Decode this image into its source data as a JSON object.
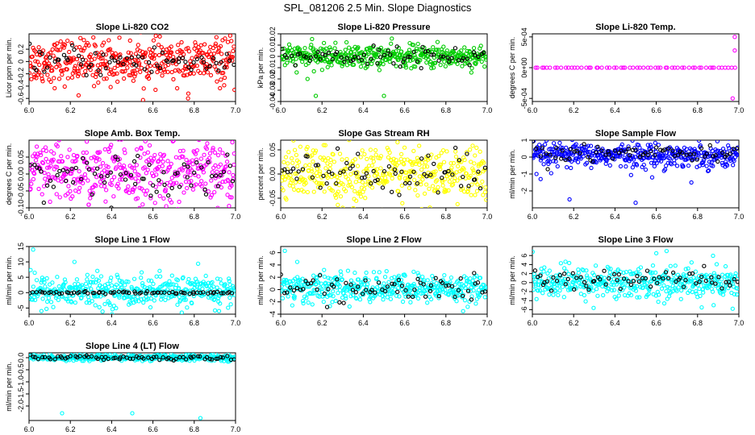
{
  "figure": {
    "title": "SPL_081206  2.5 Min. Slope Diagnostics"
  },
  "chart_data": [
    {
      "type": "scatter",
      "title": "Slope Li-820 CO2",
      "ylabel": "Licor ppm per min.",
      "xlim": [
        6.0,
        7.0
      ],
      "xticks": [
        "6.0",
        "6.2",
        "6.4",
        "6.6",
        "6.8",
        "7.0"
      ],
      "ylim": [
        -0.65,
        0.45
      ],
      "yticks": [
        -0.6,
        -0.4,
        -0.2,
        0.0,
        0.2
      ],
      "ytick_labels": [
        "-0.6",
        "-0.4",
        "-0.2",
        "0",
        "0.2"
      ],
      "series": [
        {
          "name": "all",
          "color": "#ff0000",
          "n": 420,
          "spread": 0.18,
          "center": 0.0
        },
        {
          "name": "highlighted",
          "color": "#000000",
          "n": 70,
          "spread": 0.12,
          "center": 0.0
        }
      ],
      "outliers": [
        [
          6.77,
          -0.6
        ],
        [
          6.24,
          -0.55
        ]
      ]
    },
    {
      "type": "scatter",
      "title": "Slope Li-820 Pressure",
      "ylabel": "kPa per min.",
      "xlim": [
        6.0,
        7.0
      ],
      "xticks": [
        "6.0",
        "6.2",
        "6.4",
        "6.6",
        "6.8",
        "7.0"
      ],
      "ylim": [
        -0.04,
        0.02
      ],
      "yticks": [
        -0.04,
        -0.03,
        -0.02,
        -0.01,
        0.0,
        0.01,
        0.02
      ],
      "ytick_labels": [
        "-0.04",
        "-0.03",
        "-0.02",
        "-0.01",
        "0",
        "0.01",
        "0.02"
      ],
      "series": [
        {
          "name": "all",
          "color": "#00cc00",
          "n": 420,
          "spread": 0.005,
          "center": 0.0
        },
        {
          "name": "highlighted",
          "color": "#000000",
          "n": 70,
          "spread": 0.004,
          "center": 0.0
        }
      ],
      "outliers": [
        [
          6.17,
          -0.035
        ],
        [
          6.5,
          -0.035
        ],
        [
          6.13,
          -0.02
        ]
      ]
    },
    {
      "type": "scatter",
      "title": "Slope Li-820 Temp.",
      "ylabel": "degrees C per min.",
      "xlim": [
        6.0,
        7.0
      ],
      "xticks": [
        "6.0",
        "6.2",
        "6.4",
        "6.6",
        "6.8",
        "7.0"
      ],
      "ylim": [
        -0.00055,
        0.00055
      ],
      "yticks": [
        -0.0005,
        0.0,
        0.0005
      ],
      "ytick_labels": [
        "-5e-04",
        "0e+00",
        "5e-04"
      ],
      "series": [
        {
          "name": "all",
          "color": "#ff00ff",
          "n": 60,
          "spread": 0,
          "center": 0.0
        }
      ],
      "outliers": [
        [
          6.98,
          0.0005
        ],
        [
          6.98,
          0.00028
        ],
        [
          6.97,
          -0.0005
        ]
      ]
    },
    {
      "type": "scatter",
      "title": "Slope Amb. Box Temp.",
      "ylabel": "degrees C per min.",
      "xlim": [
        6.0,
        7.0
      ],
      "xticks": [
        "6.0",
        "6.2",
        "6.4",
        "6.6",
        "6.8",
        "7.0"
      ],
      "ylim": [
        -0.1,
        0.1
      ],
      "yticks": [
        -0.1,
        -0.05,
        0.0,
        0.05
      ],
      "ytick_labels": [
        "-0.10",
        "-0.05",
        "0.00",
        "0.05"
      ],
      "series": [
        {
          "name": "all",
          "color": "#ff00ff",
          "n": 420,
          "spread": 0.045,
          "center": 0.0
        },
        {
          "name": "highlighted",
          "color": "#000000",
          "n": 70,
          "spread": 0.03,
          "center": 0.0
        }
      ],
      "outliers": []
    },
    {
      "type": "scatter",
      "title": "Slope Gas Stream RH",
      "ylabel": "percent per min.",
      "xlim": [
        6.0,
        7.0
      ],
      "xticks": [
        "6.0",
        "6.2",
        "6.4",
        "6.6",
        "6.8",
        "7.0"
      ],
      "ylim": [
        -0.07,
        0.07
      ],
      "yticks": [
        -0.05,
        0.0,
        0.05
      ],
      "ytick_labels": [
        "-0.05",
        "0.00",
        "0.05"
      ],
      "series": [
        {
          "name": "all",
          "color": "#ffff00",
          "n": 420,
          "spread": 0.03,
          "center": 0.0
        },
        {
          "name": "highlighted",
          "color": "#000000",
          "n": 70,
          "spread": 0.025,
          "center": 0.0
        }
      ],
      "outliers": []
    },
    {
      "type": "scatter",
      "title": "Slope Sample Flow",
      "ylabel": "ml/min per min.",
      "xlim": [
        6.0,
        7.0
      ],
      "xticks": [
        "6.0",
        "6.2",
        "6.4",
        "6.6",
        "6.8",
        "7.0"
      ],
      "ylim": [
        -3,
        1
      ],
      "yticks": [
        -2,
        -1,
        0,
        1
      ],
      "ytick_labels": [
        "-2",
        "-1",
        "0",
        "1"
      ],
      "series": [
        {
          "name": "all",
          "color": "#0000ff",
          "n": 420,
          "spread": 0.35,
          "center": 0.1
        },
        {
          "name": "highlighted",
          "color": "#000000",
          "n": 70,
          "spread": 0.3,
          "center": 0.3
        }
      ],
      "outliers": [
        [
          6.18,
          -2.5
        ],
        [
          6.5,
          -2.7
        ],
        [
          6.77,
          -1.5
        ],
        [
          6.04,
          -1.3
        ],
        [
          6.02,
          -1.0
        ],
        [
          6.58,
          -1.2
        ]
      ]
    },
    {
      "type": "scatter",
      "title": "Slope Line 1 Flow",
      "ylabel": "ml/min per min.",
      "xlim": [
        6.0,
        7.0
      ],
      "xticks": [
        "6.0",
        "6.2",
        "6.4",
        "6.6",
        "6.8",
        "7.0"
      ],
      "ylim": [
        -7,
        15
      ],
      "yticks": [
        -5,
        0,
        5,
        10,
        15
      ],
      "ytick_labels": [
        "-5",
        "0",
        "5",
        "10",
        "15"
      ],
      "series": [
        {
          "name": "all",
          "color": "#00ffff",
          "n": 420,
          "spread": 2.5,
          "center": 0.5
        },
        {
          "name": "highlighted",
          "color": "#000000",
          "n": 70,
          "spread": 0.2,
          "center": 0.0
        }
      ],
      "outliers": [
        [
          6.02,
          14
        ],
        [
          6.22,
          10
        ],
        [
          6.92,
          -6
        ],
        [
          6.06,
          -6
        ]
      ]
    },
    {
      "type": "scatter",
      "title": "Slope Line 2 Flow",
      "ylabel": "ml/min per min.",
      "xlim": [
        6.0,
        7.0
      ],
      "xticks": [
        "6.0",
        "6.2",
        "6.4",
        "6.6",
        "6.8",
        "7.0"
      ],
      "ylim": [
        -4,
        7
      ],
      "yticks": [
        -4,
        -2,
        0,
        2,
        4,
        6
      ],
      "ytick_labels": [
        "-4",
        "-2",
        "0",
        "2",
        "4",
        "6"
      ],
      "series": [
        {
          "name": "all",
          "color": "#00ffff",
          "n": 420,
          "spread": 1.2,
          "center": 0.2
        },
        {
          "name": "highlighted",
          "color": "#000000",
          "n": 70,
          "spread": 1.0,
          "center": 0.2
        }
      ],
      "outliers": [
        [
          6.02,
          6.3
        ],
        [
          6.08,
          4.5
        ]
      ]
    },
    {
      "type": "scatter",
      "title": "Slope Line 3 Flow",
      "ylabel": "ml/min per min.",
      "xlim": [
        6.0,
        7.0
      ],
      "xticks": [
        "6.0",
        "6.2",
        "6.4",
        "6.6",
        "6.8",
        "7.0"
      ],
      "ylim": [
        -7,
        8
      ],
      "yticks": [
        -6,
        -4,
        -2,
        0,
        2,
        4,
        6
      ],
      "ytick_labels": [
        "-6",
        "-4",
        "-2",
        "0",
        "2",
        "4",
        "6"
      ],
      "series": [
        {
          "name": "all",
          "color": "#00ffff",
          "n": 420,
          "spread": 1.8,
          "center": 0.0
        },
        {
          "name": "highlighted",
          "color": "#000000",
          "n": 70,
          "spread": 1.4,
          "center": 0.5
        }
      ],
      "outliers": [
        [
          6.65,
          7.0
        ],
        [
          6.82,
          -5.5
        ],
        [
          6.97,
          -5.8
        ],
        [
          6.6,
          6.5
        ]
      ]
    },
    {
      "type": "scatter",
      "title": "Slope Line 4 (LT) Flow",
      "ylabel": "ml/min per min.",
      "xlim": [
        6.0,
        7.0
      ],
      "xticks": [
        "6.0",
        "6.2",
        "6.4",
        "6.6",
        "6.8",
        "7.0"
      ],
      "ylim": [
        -2.6,
        0.2
      ],
      "yticks": [
        -2.0,
        -1.5,
        -1.0,
        -0.5,
        0.0
      ],
      "ytick_labels": [
        "-2.0",
        "-1.5",
        "-1.0",
        "-0.5",
        "0.0"
      ],
      "series": [
        {
          "name": "all",
          "color": "#00ffff",
          "n": 420,
          "spread": 0.06,
          "center": 0.0
        },
        {
          "name": "highlighted",
          "color": "#000000",
          "n": 70,
          "spread": 0.05,
          "center": 0.0
        }
      ],
      "outliers": [
        [
          6.16,
          -2.3
        ],
        [
          6.5,
          -2.3
        ],
        [
          6.83,
          -2.5
        ]
      ]
    }
  ]
}
